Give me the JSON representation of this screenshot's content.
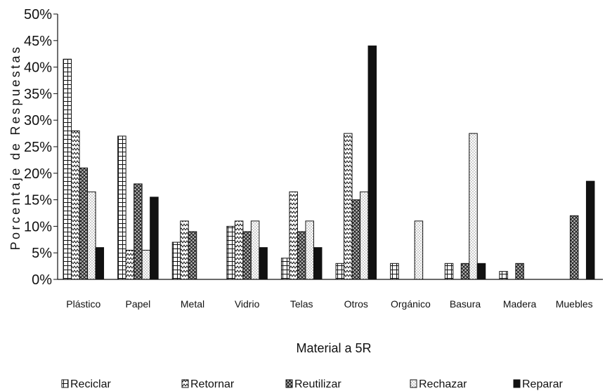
{
  "chart_data": {
    "type": "bar",
    "xlabel": "Material a 5R",
    "ylabel": "Porcentaje de Respuestas",
    "ylim": [
      0,
      50
    ],
    "yticks": [
      "0%",
      "5%",
      "10%",
      "15%",
      "20%",
      "25%",
      "30%",
      "35%",
      "40%",
      "45%",
      "50%"
    ],
    "grid": false,
    "legend_position": "bottom",
    "categories": [
      "Plástico",
      "Papel",
      "Metal",
      "Vidrio",
      "Telas",
      "Otros",
      "Orgánico",
      "Basura",
      "Madera",
      "Muebles"
    ],
    "series": [
      {
        "name": "Reciclar",
        "pattern": "grid",
        "values": [
          41.5,
          27,
          7,
          10,
          4,
          3,
          3,
          3,
          1.5,
          0
        ]
      },
      {
        "name": "Retornar",
        "pattern": "wave",
        "values": [
          28,
          5.5,
          11,
          11,
          16.5,
          27.5,
          0,
          0,
          0,
          0
        ]
      },
      {
        "name": "Reutilizar",
        "pattern": "crosshatch",
        "values": [
          21,
          18,
          9,
          9,
          9,
          15,
          0,
          3,
          3,
          12
        ]
      },
      {
        "name": "Rechazar",
        "pattern": "dots",
        "values": [
          16.5,
          5.5,
          0,
          11,
          11,
          16.5,
          11,
          27.5,
          0,
          0
        ]
      },
      {
        "name": "Reparar",
        "pattern": "solid",
        "values": [
          6,
          15.5,
          0,
          6,
          6,
          44,
          0,
          3,
          0,
          18.5
        ]
      }
    ],
    "colors": {
      "ink": "#111111",
      "background": "#ffffff"
    }
  }
}
